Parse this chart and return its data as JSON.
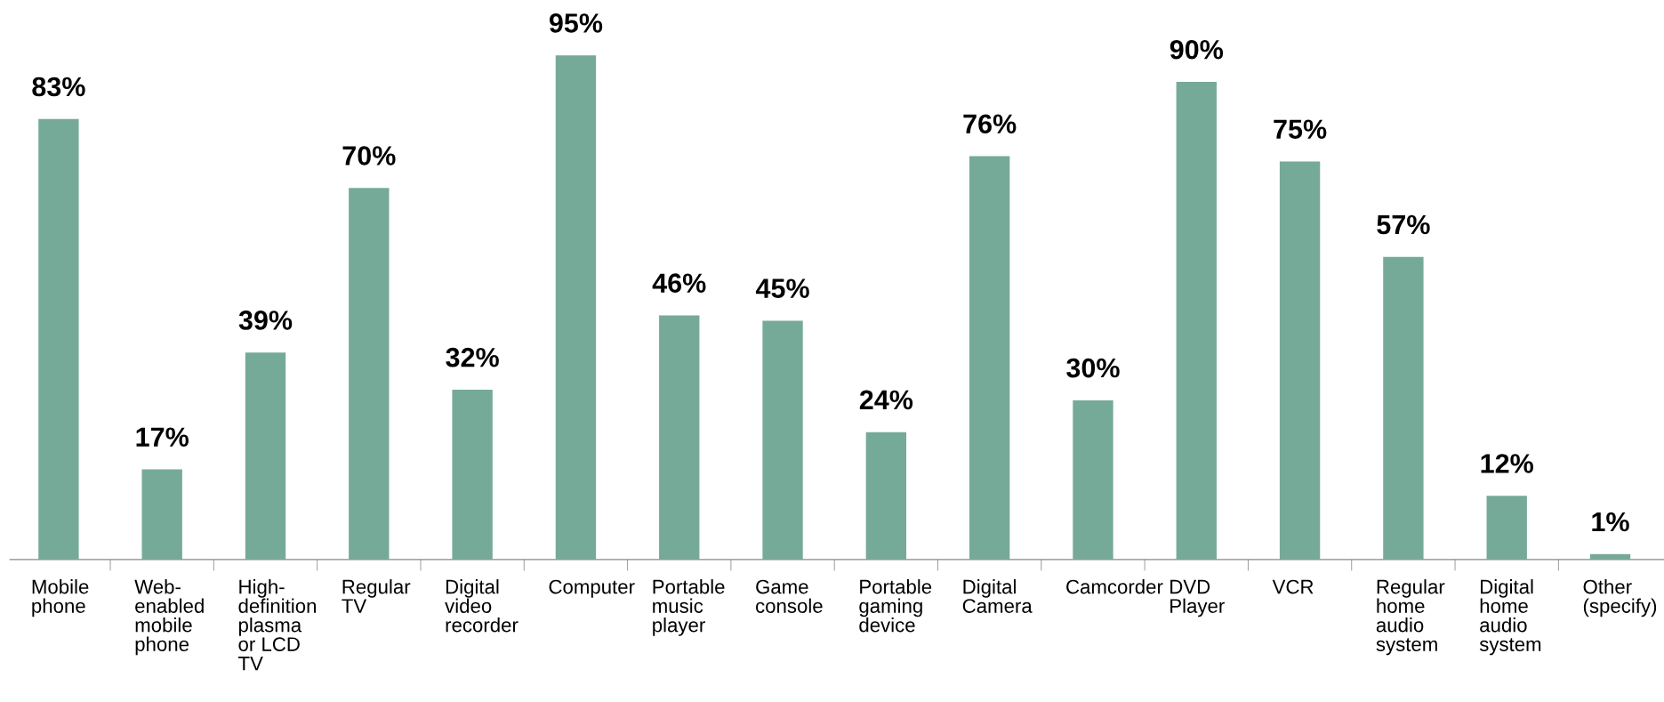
{
  "chart_data": {
    "type": "bar",
    "categories": [
      "Mobile\nphone",
      "Web-\nenabled\nmobile\nphone",
      "High-\ndefinition\nplasma\nor LCD\nTV",
      "Regular\nTV",
      "Digital\nvideo\nrecorder",
      "Computer",
      "Portable\nmusic\nplayer",
      "Game\nconsole",
      "Portable\ngaming\ndevice",
      "Digital\nCamera",
      "Camcorder",
      "DVD\nPlayer",
      "VCR",
      "Regular\nhome\naudio\nsystem",
      "Digital\nhome\naudio\nsystem",
      "Other\n(specify)"
    ],
    "values": [
      83,
      17,
      39,
      70,
      32,
      95,
      46,
      45,
      24,
      76,
      30,
      90,
      75,
      57,
      12,
      1
    ],
    "value_labels": [
      "83%",
      "17%",
      "39%",
      "70%",
      "32%",
      "95%",
      "46%",
      "45%",
      "24%",
      "76%",
      "30%",
      "90%",
      "75%",
      "57%",
      "12%",
      "1%"
    ],
    "color": "#76aa98",
    "grid": false,
    "legend": false,
    "tick_labels": "x"
  }
}
